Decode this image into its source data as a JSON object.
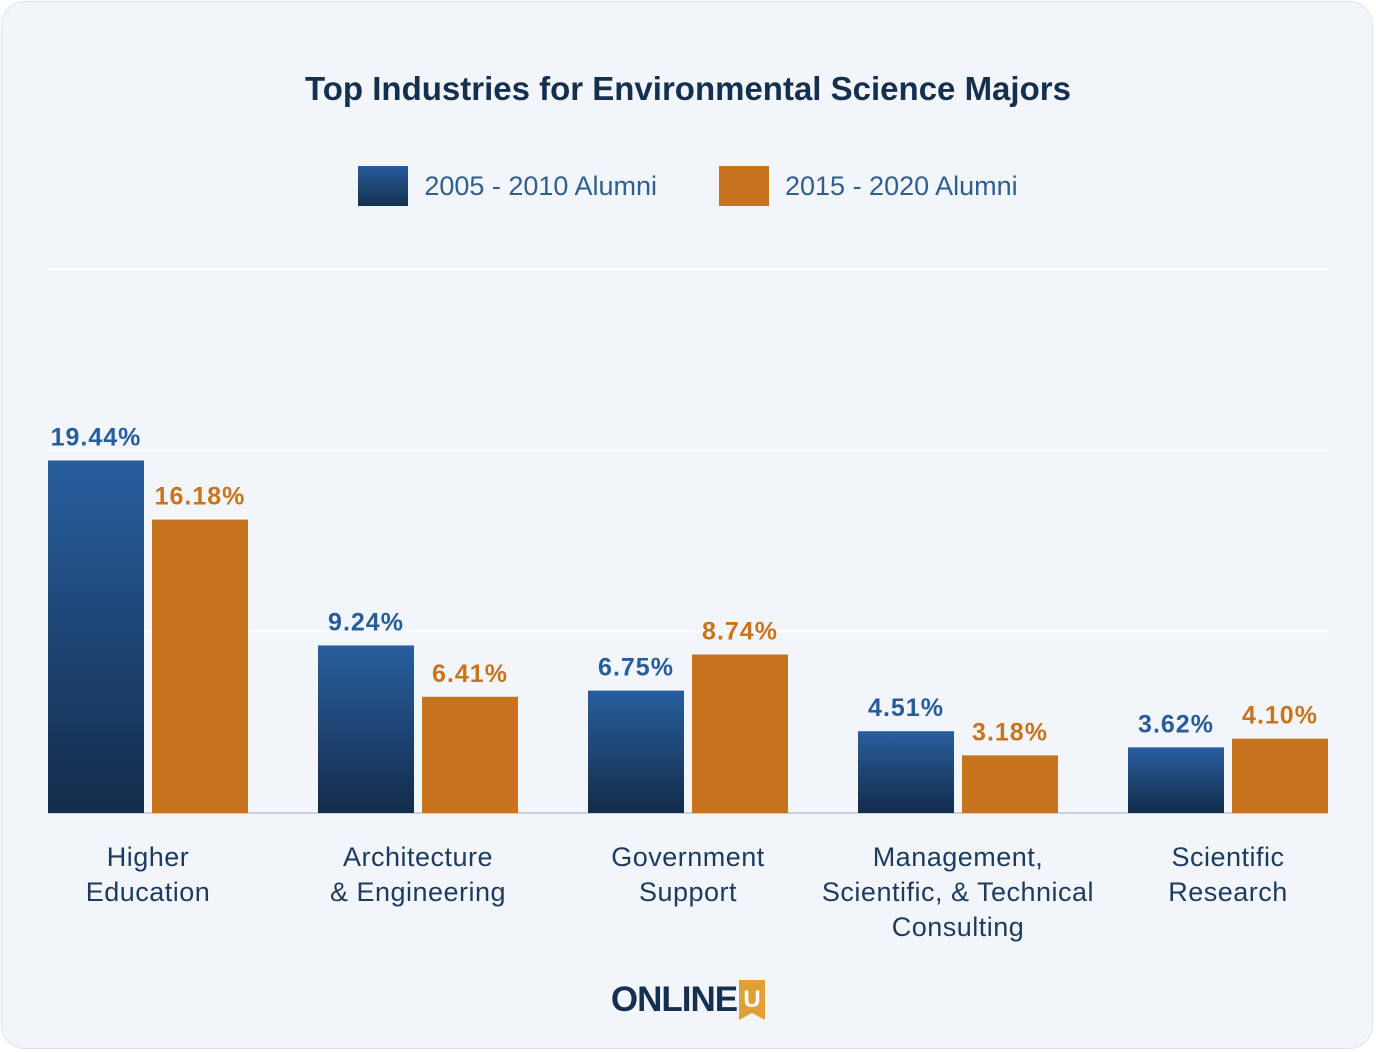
{
  "chart_data": {
    "type": "bar",
    "title": "Top Industries for Environmental Science Majors",
    "categories": [
      [
        "Higher",
        "Education"
      ],
      [
        "Architecture",
        "& Engineering"
      ],
      [
        "Government",
        "Support"
      ],
      [
        "Management,",
        "Scientific, & Technical",
        "Consulting"
      ],
      [
        "Scientific",
        "Research"
      ]
    ],
    "series": [
      {
        "name": "2005 - 2010 Alumni",
        "color": "#275d9c",
        "values": [
          19.44,
          9.24,
          6.75,
          4.51,
          3.62
        ],
        "labels": [
          "19.44%",
          "9.24%",
          "6.75%",
          "4.51%",
          "3.62%"
        ]
      },
      {
        "name": "2015 - 2020 Alumni",
        "color": "#c8741f",
        "values": [
          16.18,
          6.41,
          8.74,
          3.18,
          4.1
        ],
        "labels": [
          "16.18%",
          "6.41%",
          "8.74%",
          "3.18%",
          "4.10%"
        ]
      }
    ],
    "ylim": [
      0,
      30
    ],
    "grid": true,
    "legend": "top-center",
    "xlabel": "",
    "ylabel": ""
  },
  "branding": {
    "logo_text": "ONLINE",
    "logo_badge": "U"
  }
}
